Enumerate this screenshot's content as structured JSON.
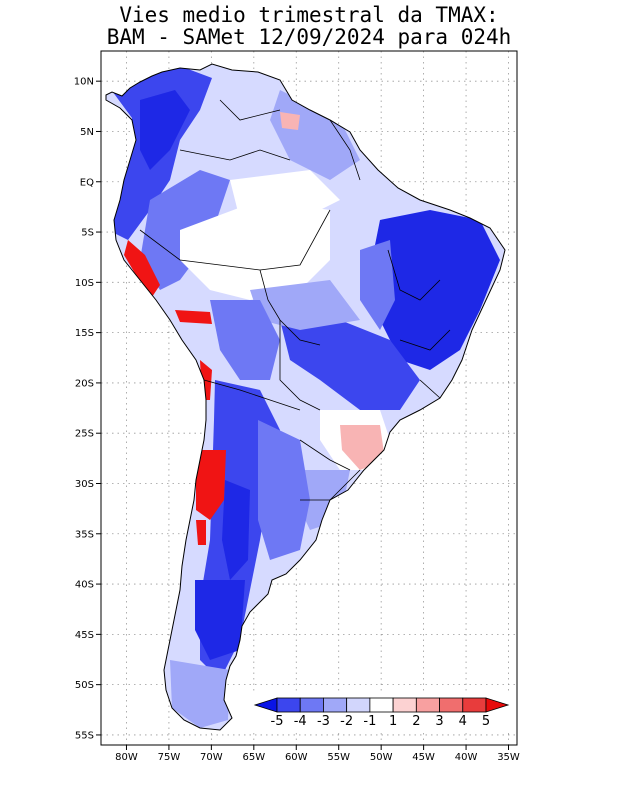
{
  "title": {
    "line1": "Vies medio trimestral da TMAX:",
    "line2": "BAM - SAMet 12/09/2024  para 024h"
  },
  "map": {
    "lon_min": -83,
    "lon_max": -34,
    "lat_min": -56,
    "lat_max": 13,
    "lat_ticks": [
      {
        "value": 10,
        "label": "10N"
      },
      {
        "value": 5,
        "label": "5N"
      },
      {
        "value": 0,
        "label": "EQ"
      },
      {
        "value": -5,
        "label": "5S"
      },
      {
        "value": -10,
        "label": "10S"
      },
      {
        "value": -15,
        "label": "15S"
      },
      {
        "value": -20,
        "label": "20S"
      },
      {
        "value": -25,
        "label": "25S"
      },
      {
        "value": -30,
        "label": "30S"
      },
      {
        "value": -35,
        "label": "35S"
      },
      {
        "value": -40,
        "label": "40S"
      },
      {
        "value": -45,
        "label": "45S"
      },
      {
        "value": -50,
        "label": "50S"
      },
      {
        "value": -55,
        "label": "55S"
      }
    ],
    "lon_ticks": [
      {
        "value": -80,
        "label": "80W"
      },
      {
        "value": -75,
        "label": "75W"
      },
      {
        "value": -70,
        "label": "70W"
      },
      {
        "value": -65,
        "label": "65W"
      },
      {
        "value": -60,
        "label": "60W"
      },
      {
        "value": -55,
        "label": "55W"
      },
      {
        "value": -50,
        "label": "50W"
      },
      {
        "value": -45,
        "label": "45W"
      },
      {
        "value": -40,
        "label": "40W"
      },
      {
        "value": -35,
        "label": "35W"
      }
    ]
  },
  "colorbar": {
    "labels": [
      "-5",
      "-4",
      "-3",
      "-2",
      "-1",
      "1",
      "2",
      "3",
      "4",
      "5"
    ],
    "colors": [
      "#0a14e6",
      "#3c46ee",
      "#6e78f4",
      "#a0a8f8",
      "#d2d6fc",
      "#ffffff",
      "#fcd2d2",
      "#f8a0a0",
      "#f06e6e",
      "#e83c3c",
      "#e80a0a"
    ]
  },
  "palette": {
    "strong_blue": "#1e28e6",
    "mid_blue": "#5a64f0",
    "light_blue": "#a0a8f8",
    "pale_blue": "#d6daff",
    "red": "#f01414",
    "pink": "#f8b4b4",
    "border": "#000000",
    "grid": "#9a9a9a"
  }
}
